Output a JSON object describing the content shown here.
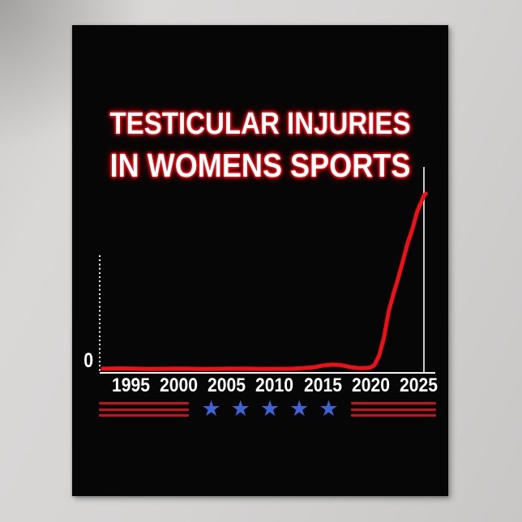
{
  "poster": {
    "title_line1": "TESTICULAR INJURIES",
    "title_line2": "IN WOMENS SPORTS"
  },
  "chart": {
    "y_zero_label": "0",
    "x_ticks": [
      "1995",
      "2000",
      "2005",
      "2010",
      "2015",
      "2020",
      "2025"
    ]
  },
  "chart_data": {
    "type": "line",
    "title": "TESTICULAR INJURIES IN WOMENS SPORTS",
    "xlabel": "",
    "ylabel": "",
    "x_tick_labels": [
      "1995",
      "2000",
      "2005",
      "2010",
      "2015",
      "2020",
      "2025"
    ],
    "y_tick_labels": [
      "0"
    ],
    "x_range": [
      1992,
      2026
    ],
    "y_range": [
      0,
      100
    ],
    "grid": false,
    "legend": "none",
    "series": [
      {
        "name": "testicular-injuries-in-womens-sports",
        "color": "#ee1016",
        "points": [
          [
            1992,
            0.5
          ],
          [
            1994,
            0.7
          ],
          [
            1997,
            0.3
          ],
          [
            2000,
            0.6
          ],
          [
            2003,
            0.3
          ],
          [
            2006,
            0.6
          ],
          [
            2009,
            0.4
          ],
          [
            2012,
            0.5
          ],
          [
            2014,
            1.2
          ],
          [
            2015,
            2.2
          ],
          [
            2016,
            2.8
          ],
          [
            2017,
            2.6
          ],
          [
            2018,
            1.4
          ],
          [
            2019,
            0.8
          ],
          [
            2020,
            1.0
          ],
          [
            2020.5,
            2.5
          ],
          [
            2021,
            8
          ],
          [
            2021.5,
            18
          ],
          [
            2022,
            33
          ],
          [
            2022.5,
            43
          ],
          [
            2023,
            52
          ],
          [
            2023.5,
            62
          ],
          [
            2024,
            72
          ],
          [
            2024.5,
            80
          ],
          [
            2025,
            90
          ],
          [
            2025.4,
            95
          ],
          [
            2025.7,
            99
          ],
          [
            2025.9,
            100
          ]
        ]
      }
    ]
  },
  "decoration": {
    "star_glyph": "★",
    "star_count": 5,
    "left_stripe_count": 3,
    "right_stripe_count": 3
  },
  "colors": {
    "poster_background": "#070606",
    "wall_background": "#d2d0cf",
    "title_fill": "#ffffff",
    "title_glow_red": "#d90f15",
    "line_red": "#ee1016",
    "axis_white": "#f2f2f2",
    "right_line_gray": "#c9c9c9",
    "star_blue": "#3e63d6",
    "stripe_red": "#c8101d"
  }
}
